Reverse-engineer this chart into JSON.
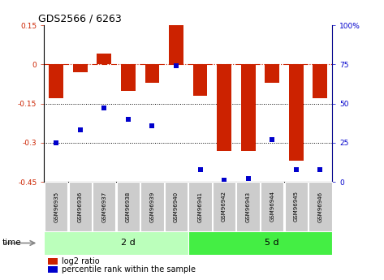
{
  "title": "GDS2566 / 6263",
  "samples": [
    "GSM96935",
    "GSM96936",
    "GSM96937",
    "GSM96938",
    "GSM96939",
    "GSM96940",
    "GSM96941",
    "GSM96942",
    "GSM96943",
    "GSM96944",
    "GSM96945",
    "GSM96946"
  ],
  "log2_ratio": [
    -0.13,
    -0.03,
    0.04,
    -0.1,
    -0.07,
    0.15,
    -0.12,
    -0.33,
    -0.33,
    -0.07,
    -0.37,
    -0.13
  ],
  "percentile_rank": [
    25,
    33,
    47,
    40,
    36,
    74,
    8,
    1,
    2,
    27,
    8,
    8
  ],
  "bar_color": "#cc2200",
  "dot_color": "#0000cc",
  "ylim_left": [
    -0.45,
    0.15
  ],
  "ylim_right": [
    0,
    100
  ],
  "yticks_left": [
    0.15,
    0,
    -0.15,
    -0.3,
    -0.45
  ],
  "yticks_left_labels": [
    "0.15",
    "0",
    "-0.15",
    "-0.3",
    "-0.45"
  ],
  "yticks_right": [
    100,
    75,
    50,
    25,
    0
  ],
  "yticks_right_labels": [
    "100%",
    "75",
    "50",
    "25",
    "0"
  ],
  "groups": [
    {
      "label": "2 d",
      "start": 0,
      "end": 6,
      "color": "#bbffbb"
    },
    {
      "label": "5 d",
      "start": 6,
      "end": 12,
      "color": "#44ee44"
    }
  ],
  "time_label": "time",
  "legend_bar_label": "log2 ratio",
  "legend_dot_label": "percentile rank within the sample",
  "background_color": "#ffffff",
  "tick_box_color": "#cccccc",
  "hline_0_color": "#cc2200",
  "hline_dotted_color": "#000000",
  "bar_width": 0.6
}
